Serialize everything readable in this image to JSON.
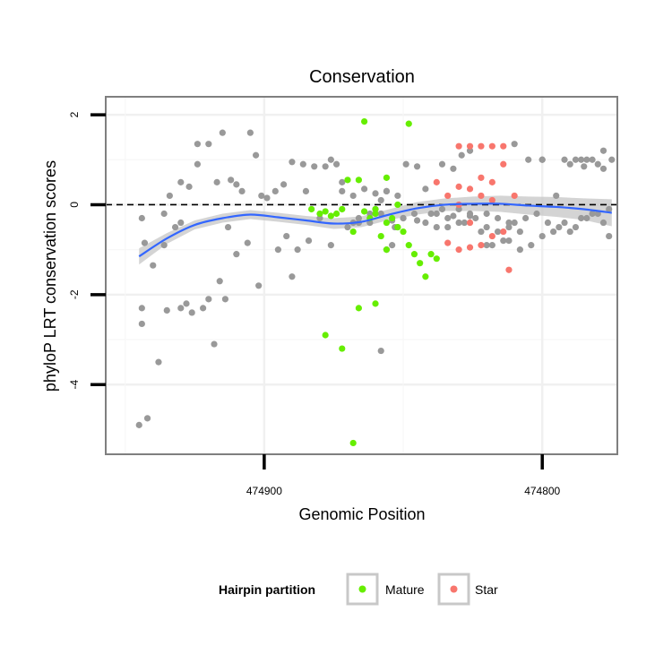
{
  "chart_data": {
    "type": "scatter",
    "title": "Conservation",
    "xlabel": "Genomic Position",
    "ylabel": "phyloP LRT conservation scores",
    "x_reversed": true,
    "xlim": [
      474957,
      474773
    ],
    "ylim": [
      -5.55,
      2.4
    ],
    "x_ticks": [
      {
        "value": 474900,
        "label": "474900"
      },
      {
        "value": 474800,
        "label": "474800"
      }
    ],
    "y_ticks": [
      {
        "value": 2,
        "label": "2"
      },
      {
        "value": 0,
        "label": "0"
      },
      {
        "value": -2,
        "label": "-2"
      },
      {
        "value": -4,
        "label": "-4"
      }
    ],
    "reference_line": {
      "y": 0,
      "style": "dashed"
    },
    "grid": true,
    "legend": {
      "title": "Hairpin partition",
      "position": "bottom",
      "entries": [
        {
          "label": "Mature",
          "color": "#66ee00"
        },
        {
          "label": "Star",
          "color": "#f8766d"
        }
      ]
    },
    "colors": {
      "other": "#999999",
      "mature": "#66ee00",
      "star": "#f8766d",
      "smooth": "#3366ff",
      "band": "#c6c6c6"
    },
    "smooth": {
      "x": [
        474945,
        474935,
        474925,
        474915,
        474905,
        474895,
        474885,
        474875,
        474865,
        474855,
        474845,
        474835,
        474825,
        474815,
        474805,
        474795,
        474785,
        474775
      ],
      "y": [
        -1.15,
        -0.75,
        -0.45,
        -0.3,
        -0.22,
        -0.28,
        -0.35,
        -0.42,
        -0.38,
        -0.22,
        -0.08,
        0.0,
        0.02,
        0.02,
        -0.02,
        -0.05,
        -0.1,
        -0.18
      ],
      "band": [
        0.18,
        0.12,
        0.1,
        0.1,
        0.1,
        0.1,
        0.1,
        0.12,
        0.12,
        0.12,
        0.14,
        0.14,
        0.16,
        0.18,
        0.2,
        0.22,
        0.24,
        0.3
      ]
    },
    "series": [
      {
        "group": "other",
        "x": [
          474945,
          474942,
          474938,
          474935,
          474930,
          474928,
          474944,
          474940,
          474936,
          474932,
          474944,
          474943,
          474926,
          474922,
          474918,
          474914,
          474920,
          474916,
          474910,
          474906,
          474902,
          474890,
          474888,
          474895,
          474892,
          474884,
          474880,
          474876,
          474870,
          474866,
          474862,
          474858,
          474854,
          474856,
          474934,
          474930,
          474927,
          474924,
          474920,
          474915,
          474912,
          474910,
          474908,
          474905,
          474901,
          474896,
          474893,
          474890,
          474886,
          474882,
          474878,
          474874,
          474872,
          474868,
          474864,
          474860,
          474856,
          474852,
          474849,
          474845,
          474842,
          474836,
          474832,
          474829,
          474826,
          474924,
          474917,
          474903,
          474899,
          474885,
          474876,
          474872,
          474944,
          474936,
          474930,
          474913,
          474868,
          474862,
          474860,
          474858,
          474856,
          474853,
          474850,
          474845,
          474840,
          474836,
          474832,
          474828,
          474824,
          474820,
          474816,
          474812,
          474808,
          474804,
          474800,
          474796,
          474792,
          474788,
          474784,
          474780,
          474776,
          474800,
          474792,
          474788,
          474786,
          474784,
          474782,
          474778,
          474775,
          474820,
          474812,
          474808,
          474812,
          474816,
          474820,
          474826,
          474830,
          474834,
          474838,
          474842,
          474846,
          474850,
          474854,
          474858,
          474862,
          474866,
          474838,
          474834,
          474830,
          474826,
          474822,
          474818,
          474814,
          474810,
          474806,
          474802,
          474798,
          474794,
          474790,
          474786,
          474782,
          474778,
          474776,
          474795,
          474790,
          474785,
          474780,
          474778,
          474810,
          474805,
          474800
        ],
        "y": [
          -4.9,
          -4.75,
          -3.5,
          -2.35,
          -2.3,
          -2.2,
          -2.65,
          -1.35,
          -0.9,
          -0.5,
          -2.3,
          -0.85,
          -2.4,
          -2.3,
          -3.1,
          -2.1,
          -2.1,
          -1.7,
          -1.1,
          -0.85,
          -1.8,
          -1.6,
          -1.0,
          -1.0,
          -0.7,
          -0.8,
          -0.3,
          -0.9,
          -0.5,
          -0.4,
          -0.3,
          -3.25,
          -0.9,
          -1.0,
          0.2,
          0.5,
          0.4,
          1.35,
          1.35,
          1.6,
          0.55,
          0.45,
          0.3,
          1.6,
          0.2,
          0.3,
          0.45,
          0.95,
          0.9,
          0.85,
          0.85,
          0.9,
          0.5,
          0.2,
          0.35,
          0.25,
          0.3,
          0.2,
          0.9,
          0.85,
          0.35,
          0.9,
          0.8,
          1.1,
          1.2,
          0.9,
          0.5,
          1.1,
          0.15,
          0.3,
          1.0,
          0.3,
          -0.3,
          -0.2,
          -0.4,
          -0.5,
          -0.4,
          -0.2,
          -0.1,
          0.1,
          0.3,
          -0.5,
          -0.3,
          -0.35,
          -0.2,
          -0.1,
          -0.25,
          -0.4,
          -0.3,
          -0.5,
          -0.6,
          -0.8,
          -1.0,
          -0.9,
          -0.7,
          -0.6,
          -0.4,
          -0.5,
          -0.3,
          -0.2,
          -0.1,
          1.0,
          1.0,
          1.0,
          1.0,
          1.0,
          1.0,
          1.2,
          1.0,
          -0.9,
          -0.5,
          -0.6,
          -0.4,
          -0.3,
          -0.2,
          -0.25,
          -0.1,
          -0.3,
          -0.5,
          -0.4,
          -0.2,
          -0.3,
          -0.35,
          -0.2,
          -0.4,
          -0.3,
          -0.2,
          -0.5,
          -0.4,
          -0.2,
          -0.6,
          -0.9,
          -0.8,
          -0.4,
          -0.3,
          -0.2,
          -0.4,
          -0.5,
          -0.6,
          -0.3,
          -0.2,
          -0.4,
          -0.7,
          0.2,
          0.9,
          0.85,
          0.9,
          0.8,
          1.35,
          1.0,
          1.0
        ],
        "color": "#999999"
      },
      {
        "group": "mature",
        "name": "Mature",
        "x": [
          474883,
          474880,
          474878,
          474876,
          474874,
          474872,
          474868,
          474870,
          474866,
          474864,
          474862,
          474860,
          474858,
          474856,
          474854,
          474852,
          474850,
          474848,
          474846,
          474844,
          474842,
          474840,
          474838,
          474856,
          474852,
          474848,
          474860,
          474866,
          474872,
          474878,
          474868,
          474864,
          474860,
          474856,
          474852
        ],
        "y": [
          -0.1,
          -0.2,
          -0.15,
          -0.25,
          -0.2,
          -0.1,
          -0.6,
          0.55,
          0.55,
          -0.15,
          -0.3,
          -0.2,
          -0.7,
          -0.4,
          -0.3,
          -0.5,
          -0.6,
          -0.9,
          -1.1,
          -1.3,
          -1.6,
          -1.1,
          -1.2,
          0.6,
          0.0,
          1.8,
          -2.2,
          -2.3,
          -3.2,
          -2.9,
          -5.3,
          1.85,
          -0.1,
          -1.0,
          -0.5
        ],
        "color": "#66ee00"
      },
      {
        "group": "star",
        "name": "Star",
        "x": [
          474838,
          474834,
          474830,
          474826,
          474822,
          474818,
          474830,
          474826,
          474822,
          474818,
          474814,
          474834,
          474830,
          474826,
          474822,
          474818,
          474814,
          474812,
          474810,
          474814,
          474818,
          474822,
          474826,
          474830
        ],
        "y": [
          0.5,
          0.2,
          0.4,
          0.35,
          0.6,
          0.5,
          1.3,
          1.3,
          1.3,
          1.3,
          1.3,
          -0.85,
          -1.0,
          -0.95,
          -0.9,
          -0.7,
          -0.6,
          -1.45,
          0.2,
          0.9,
          0.1,
          0.2,
          -0.4,
          0.0
        ],
        "color": "#f8766d"
      }
    ]
  }
}
